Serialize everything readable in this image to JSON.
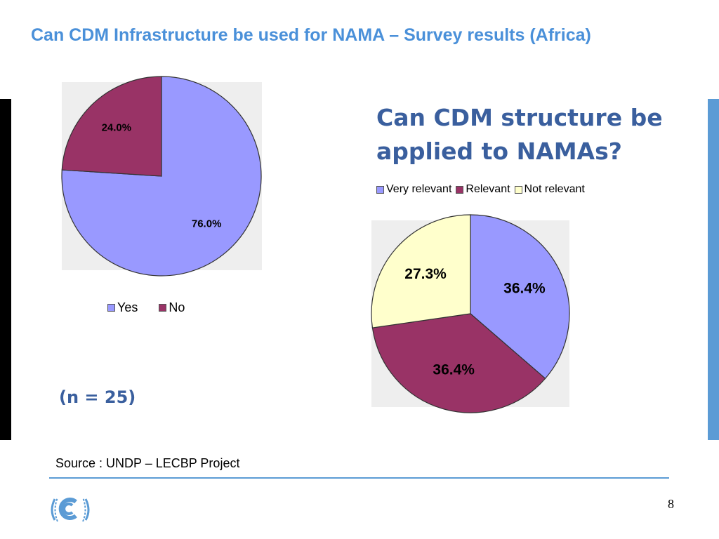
{
  "slide": {
    "title": "Can CDM Infrastructure be used for NAMA – Survey results (Africa)",
    "question": "Can CDM structure be applied to NAMAs?",
    "sample_size": "(n = 25)",
    "source": "Source : UNDP – LECBP Project",
    "page_number": "8"
  },
  "colors": {
    "title": "#4a90d9",
    "question": "#3a5f9e",
    "accent_bar": "#5b9bd5",
    "periwinkle": "#9999ff",
    "plum": "#993366",
    "cream": "#ffffcc"
  },
  "chart_data": [
    {
      "type": "pie",
      "title": "",
      "categories": [
        "Yes",
        "No"
      ],
      "values": [
        76.0,
        24.0
      ],
      "labels": [
        "76.0%",
        "24.0%"
      ],
      "colors": [
        "#9999ff",
        "#993366"
      ],
      "legend": "bottom"
    },
    {
      "type": "pie",
      "title": "Can CDM structure be applied to NAMAs?",
      "categories": [
        "Very relevant",
        "Relevant",
        "Not relevant"
      ],
      "values": [
        36.4,
        36.4,
        27.3
      ],
      "labels": [
        "36.4%",
        "36.4%",
        "27.3%"
      ],
      "colors": [
        "#9999ff",
        "#993366",
        "#ffffcc"
      ],
      "legend": "top"
    }
  ]
}
